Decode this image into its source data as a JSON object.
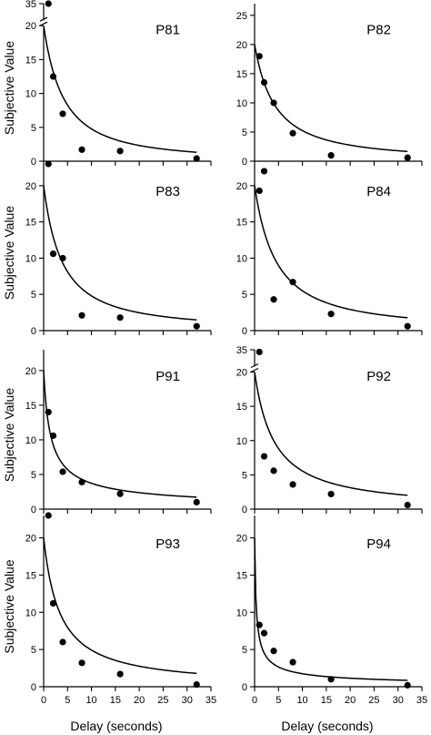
{
  "figure": {
    "ylabel": "Subjective Value",
    "xlabel": "Delay (seconds)"
  },
  "chart_data": [
    {
      "panel_label": "P81",
      "type": "scatter",
      "x": [
        1,
        2,
        4,
        8,
        16,
        32
      ],
      "points_y": [
        35,
        12.5,
        7,
        1.7,
        1.5,
        0.4
      ],
      "ylim": [
        0,
        35
      ],
      "axis_break": true,
      "y_ticks": [
        "0",
        "5",
        "10",
        "15",
        "20",
        "35"
      ],
      "x_ticks": [],
      "fit": {
        "y0": 20,
        "k": 0.16,
        "s": 1.5
      },
      "ylabel": "Subjective Value",
      "xlabel": ""
    },
    {
      "panel_label": "P82",
      "type": "scatter",
      "x": [
        1,
        2,
        4,
        8,
        16,
        32
      ],
      "points_y": [
        18,
        13.5,
        10,
        4.8,
        1,
        0.6
      ],
      "ylim": [
        0,
        27
      ],
      "axis_break": false,
      "y_ticks": [
        "0",
        "5",
        "10",
        "15",
        "20",
        "25"
      ],
      "x_ticks": [],
      "fit": {
        "y0": 20,
        "k": 0.18,
        "s": 1.3
      },
      "ylabel": "",
      "xlabel": ""
    },
    {
      "panel_label": "P83",
      "type": "scatter",
      "x": [
        1,
        2,
        4,
        8,
        16,
        32
      ],
      "points_y": [
        23,
        10.6,
        10,
        2.1,
        1.8,
        0.6
      ],
      "ylim": [
        0,
        23
      ],
      "axis_break": false,
      "y_ticks": [
        "0",
        "5",
        "10",
        "15",
        "20"
      ],
      "x_ticks": [],
      "fit": {
        "y0": 20,
        "k": 0.2,
        "s": 1.3
      },
      "ylabel": "Subjective Value",
      "xlabel": ""
    },
    {
      "panel_label": "P84",
      "type": "scatter",
      "x": [
        1,
        2,
        4,
        8,
        16,
        32
      ],
      "points_y": [
        19.3,
        22,
        4.3,
        6.7,
        2.3,
        0.6
      ],
      "ylim": [
        0,
        23
      ],
      "axis_break": false,
      "y_ticks": [
        "0",
        "5",
        "10",
        "15",
        "20"
      ],
      "x_ticks": [],
      "fit": {
        "y0": 20,
        "k": 0.17,
        "s": 1.3
      },
      "ylabel": "",
      "xlabel": ""
    },
    {
      "panel_label": "P91",
      "type": "scatter",
      "x": [
        1,
        2,
        4,
        8,
        16,
        32
      ],
      "points_y": [
        14,
        10.6,
        5.4,
        3.9,
        2.2,
        1
      ],
      "ylim": [
        0,
        23
      ],
      "axis_break": false,
      "y_ticks": [
        "0",
        "5",
        "10",
        "15",
        "20"
      ],
      "x_ticks": [],
      "fit": {
        "y0": 20,
        "k": 1.0,
        "s": 0.7
      },
      "ylabel": "Subjective Value",
      "xlabel": ""
    },
    {
      "panel_label": "P92",
      "type": "scatter",
      "x": [
        1,
        2,
        4,
        8,
        16,
        32
      ],
      "points_y": [
        33.5,
        7.7,
        5.6,
        3.6,
        2.2,
        0.6
      ],
      "ylim": [
        0,
        35
      ],
      "axis_break": true,
      "y_ticks": [
        "0",
        "5",
        "10",
        "15",
        "20",
        "35"
      ],
      "x_ticks": [],
      "fit": {
        "y0": 20,
        "k": 0.22,
        "s": 1.1
      },
      "ylabel": "",
      "xlabel": ""
    },
    {
      "panel_label": "P93",
      "type": "scatter",
      "x": [
        1,
        2,
        4,
        8,
        16,
        32
      ],
      "points_y": [
        23,
        11.2,
        6,
        3.2,
        1.7,
        0.3
      ],
      "ylim": [
        0,
        23
      ],
      "axis_break": false,
      "y_ticks": [
        "0",
        "5",
        "10",
        "15",
        "20"
      ],
      "x_ticks": [
        "0",
        "5",
        "10",
        "15",
        "20",
        "25",
        "30",
        "35"
      ],
      "fit": {
        "y0": 20,
        "k": 0.28,
        "s": 1.05
      },
      "ylabel": "Subjective Value",
      "xlabel": "Delay (seconds)"
    },
    {
      "panel_label": "P94",
      "type": "scatter",
      "x": [
        1,
        2,
        4,
        8,
        16,
        32
      ],
      "points_y": [
        8.3,
        7.2,
        4.8,
        3.3,
        1,
        0.2
      ],
      "ylim": [
        0,
        23
      ],
      "axis_break": false,
      "y_ticks": [
        "0",
        "5",
        "10",
        "15",
        "20"
      ],
      "x_ticks": [
        "0",
        "5",
        "10",
        "15",
        "20",
        "25",
        "30",
        "35"
      ],
      "fit": {
        "y0": 20,
        "k": 5.0,
        "s": 0.62
      },
      "ylabel": "",
      "xlabel": "Delay (seconds)"
    }
  ]
}
